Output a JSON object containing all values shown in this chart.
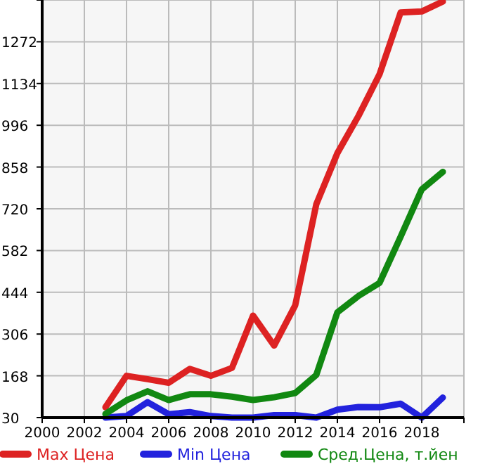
{
  "chart_data": {
    "type": "line",
    "x": [
      2003,
      2004,
      2005,
      2006,
      2007,
      2008,
      2009,
      2010,
      2011,
      2012,
      2013,
      2014,
      2015,
      2016,
      2017,
      2018,
      2019
    ],
    "series": [
      {
        "name": "Max Цена",
        "color": "#dd2222",
        "values": [
          64,
          168,
          157,
          145,
          191,
          168,
          194,
          367,
          268,
          401,
          735,
          904,
          1027,
          1165,
          1369,
          1372,
          1405
        ]
      },
      {
        "name": "Min Цена",
        "color": "#2222dd",
        "values": [
          30,
          35,
          81,
          41,
          48,
          35,
          30,
          30,
          38,
          38,
          30,
          56,
          65,
          64,
          76,
          30,
          96
        ]
      },
      {
        "name": "Сред.Цена, т.йен",
        "color": "#118811",
        "values": [
          42,
          87,
          117,
          88,
          107,
          107,
          99,
          88,
          97,
          111,
          171,
          378,
          432,
          475,
          628,
          784,
          842
        ]
      }
    ],
    "xlim": [
      2000,
      2020
    ],
    "xticks": [
      2000,
      2002,
      2004,
      2006,
      2008,
      2010,
      2012,
      2014,
      2016,
      2018,
      {
        "value": 2020,
        "label": null
      }
    ],
    "ylim": [
      30,
      1410
    ],
    "yticks": [
      30,
      168,
      306,
      444,
      582,
      720,
      858,
      996,
      1134,
      1272,
      {
        "value": 1410,
        "label": null
      }
    ],
    "grid": true,
    "legend": "bottom",
    "marker": "none",
    "line_style": "solid"
  }
}
